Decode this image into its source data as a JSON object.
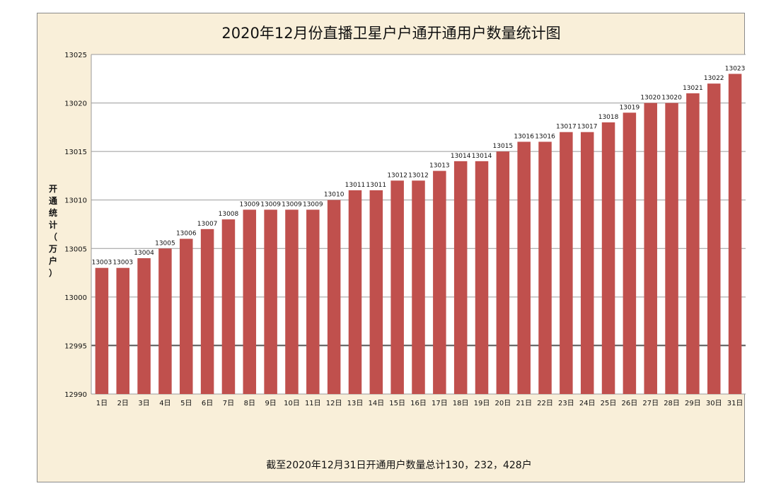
{
  "chart_data": {
    "type": "bar",
    "title": "2020年12月份直播卫星户户通开通用户数量统计图",
    "ylabel": "开通统计（万户）",
    "xlabel": "",
    "footer": "截至2020年12月31日开通用户数量总计130，232，428户",
    "ylim": [
      12990,
      13025
    ],
    "yticks": [
      12990,
      12995,
      13000,
      13005,
      13010,
      13015,
      13020,
      13025
    ],
    "grid": true,
    "legend": "none",
    "bar_color": "#c0504d",
    "categories": [
      "1日",
      "2日",
      "3日",
      "4日",
      "5日",
      "6日",
      "7日",
      "8日",
      "9日",
      "10日",
      "11日",
      "12日",
      "13日",
      "14日",
      "15日",
      "16日",
      "17日",
      "18日",
      "19日",
      "20日",
      "21日",
      "22日",
      "23日",
      "24日",
      "25日",
      "26日",
      "27日",
      "28日",
      "29日",
      "30日",
      "31日"
    ],
    "values": [
      13003,
      13003,
      13004,
      13005,
      13006,
      13007,
      13008,
      13009,
      13009,
      13009,
      13009,
      13010,
      13011,
      13011,
      13012,
      13012,
      13013,
      13014,
      13014,
      13015,
      13016,
      13016,
      13017,
      13017,
      13018,
      13019,
      13020,
      13020,
      13021,
      13022,
      13023
    ]
  }
}
